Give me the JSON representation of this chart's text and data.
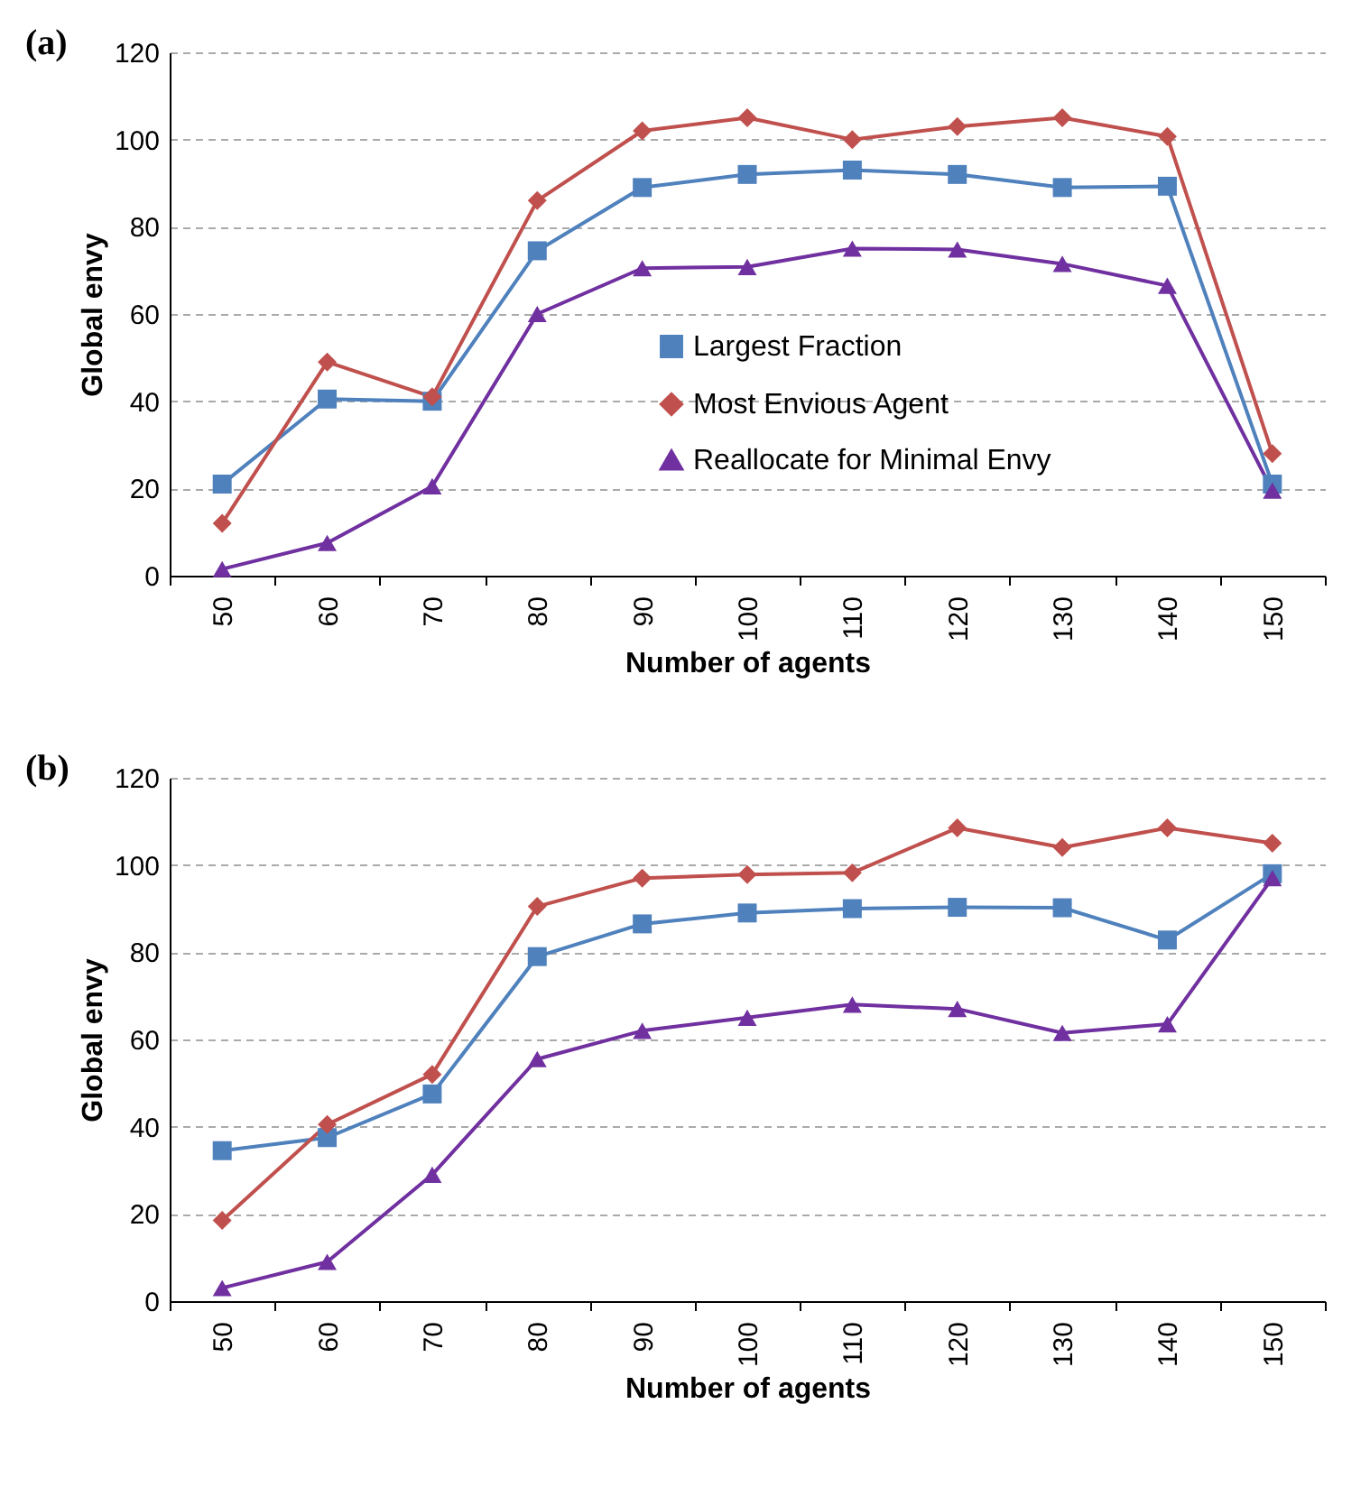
{
  "chart_data": [
    {
      "type": "line",
      "title": "(a)",
      "xlabel": "Number of agents",
      "ylabel": "Global envy",
      "categories": [
        "50",
        "60",
        "70",
        "80",
        "90",
        "100",
        "110",
        "120",
        "130",
        "140",
        "150"
      ],
      "ylim": [
        0,
        120
      ],
      "yticks": [
        0,
        20,
        40,
        60,
        80,
        100,
        120
      ],
      "grid": "y",
      "legend": "bottom right",
      "series": [
        {
          "name": "Largest Fraction",
          "color": "#4f81bd",
          "marker": "square",
          "values": [
            21,
            40.5,
            40,
            74.5,
            89,
            92,
            93,
            92,
            89,
            89.3,
            21
          ]
        },
        {
          "name": "Most Envious Agent",
          "color": "#c0504d",
          "marker": "diamond",
          "values": [
            12,
            49,
            41,
            86,
            102,
            105,
            100,
            103,
            105,
            100.7,
            28
          ]
        },
        {
          "name": "Reallocate for Minimal Envy",
          "color": "#7030a0",
          "marker": "triangle",
          "values": [
            1.5,
            7.5,
            20.5,
            60,
            70.5,
            70.8,
            75,
            74.8,
            71.5,
            66.5,
            19.5
          ]
        }
      ]
    },
    {
      "type": "line",
      "title": "(b)",
      "xlabel": "Number of agents",
      "ylabel": "Global envy",
      "categories": [
        "50",
        "60",
        "70",
        "80",
        "90",
        "100",
        "110",
        "120",
        "130",
        "140",
        "150"
      ],
      "ylim": [
        0,
        120
      ],
      "yticks": [
        0,
        20,
        40,
        60,
        80,
        100,
        120
      ],
      "grid": "y",
      "legend": "bottom right",
      "series": [
        {
          "name": "Largest Fraction",
          "color": "#4f81bd",
          "marker": "square",
          "values": [
            34.5,
            37.5,
            47.5,
            79,
            86.5,
            89,
            90,
            90.3,
            90.2,
            82.8,
            98
          ]
        },
        {
          "name": "Most Envious Agent",
          "color": "#c0504d",
          "marker": "diamond",
          "values": [
            18.5,
            40.5,
            52,
            90.5,
            97,
            97.8,
            98.2,
            108.5,
            104,
            108.5,
            105
          ]
        },
        {
          "name": "Reallocate for Minimal Envy",
          "color": "#7030a0",
          "marker": "triangle",
          "values": [
            3,
            9,
            29,
            55.5,
            62,
            65,
            68,
            67,
            61.5,
            63.5,
            97
          ]
        }
      ]
    }
  ]
}
